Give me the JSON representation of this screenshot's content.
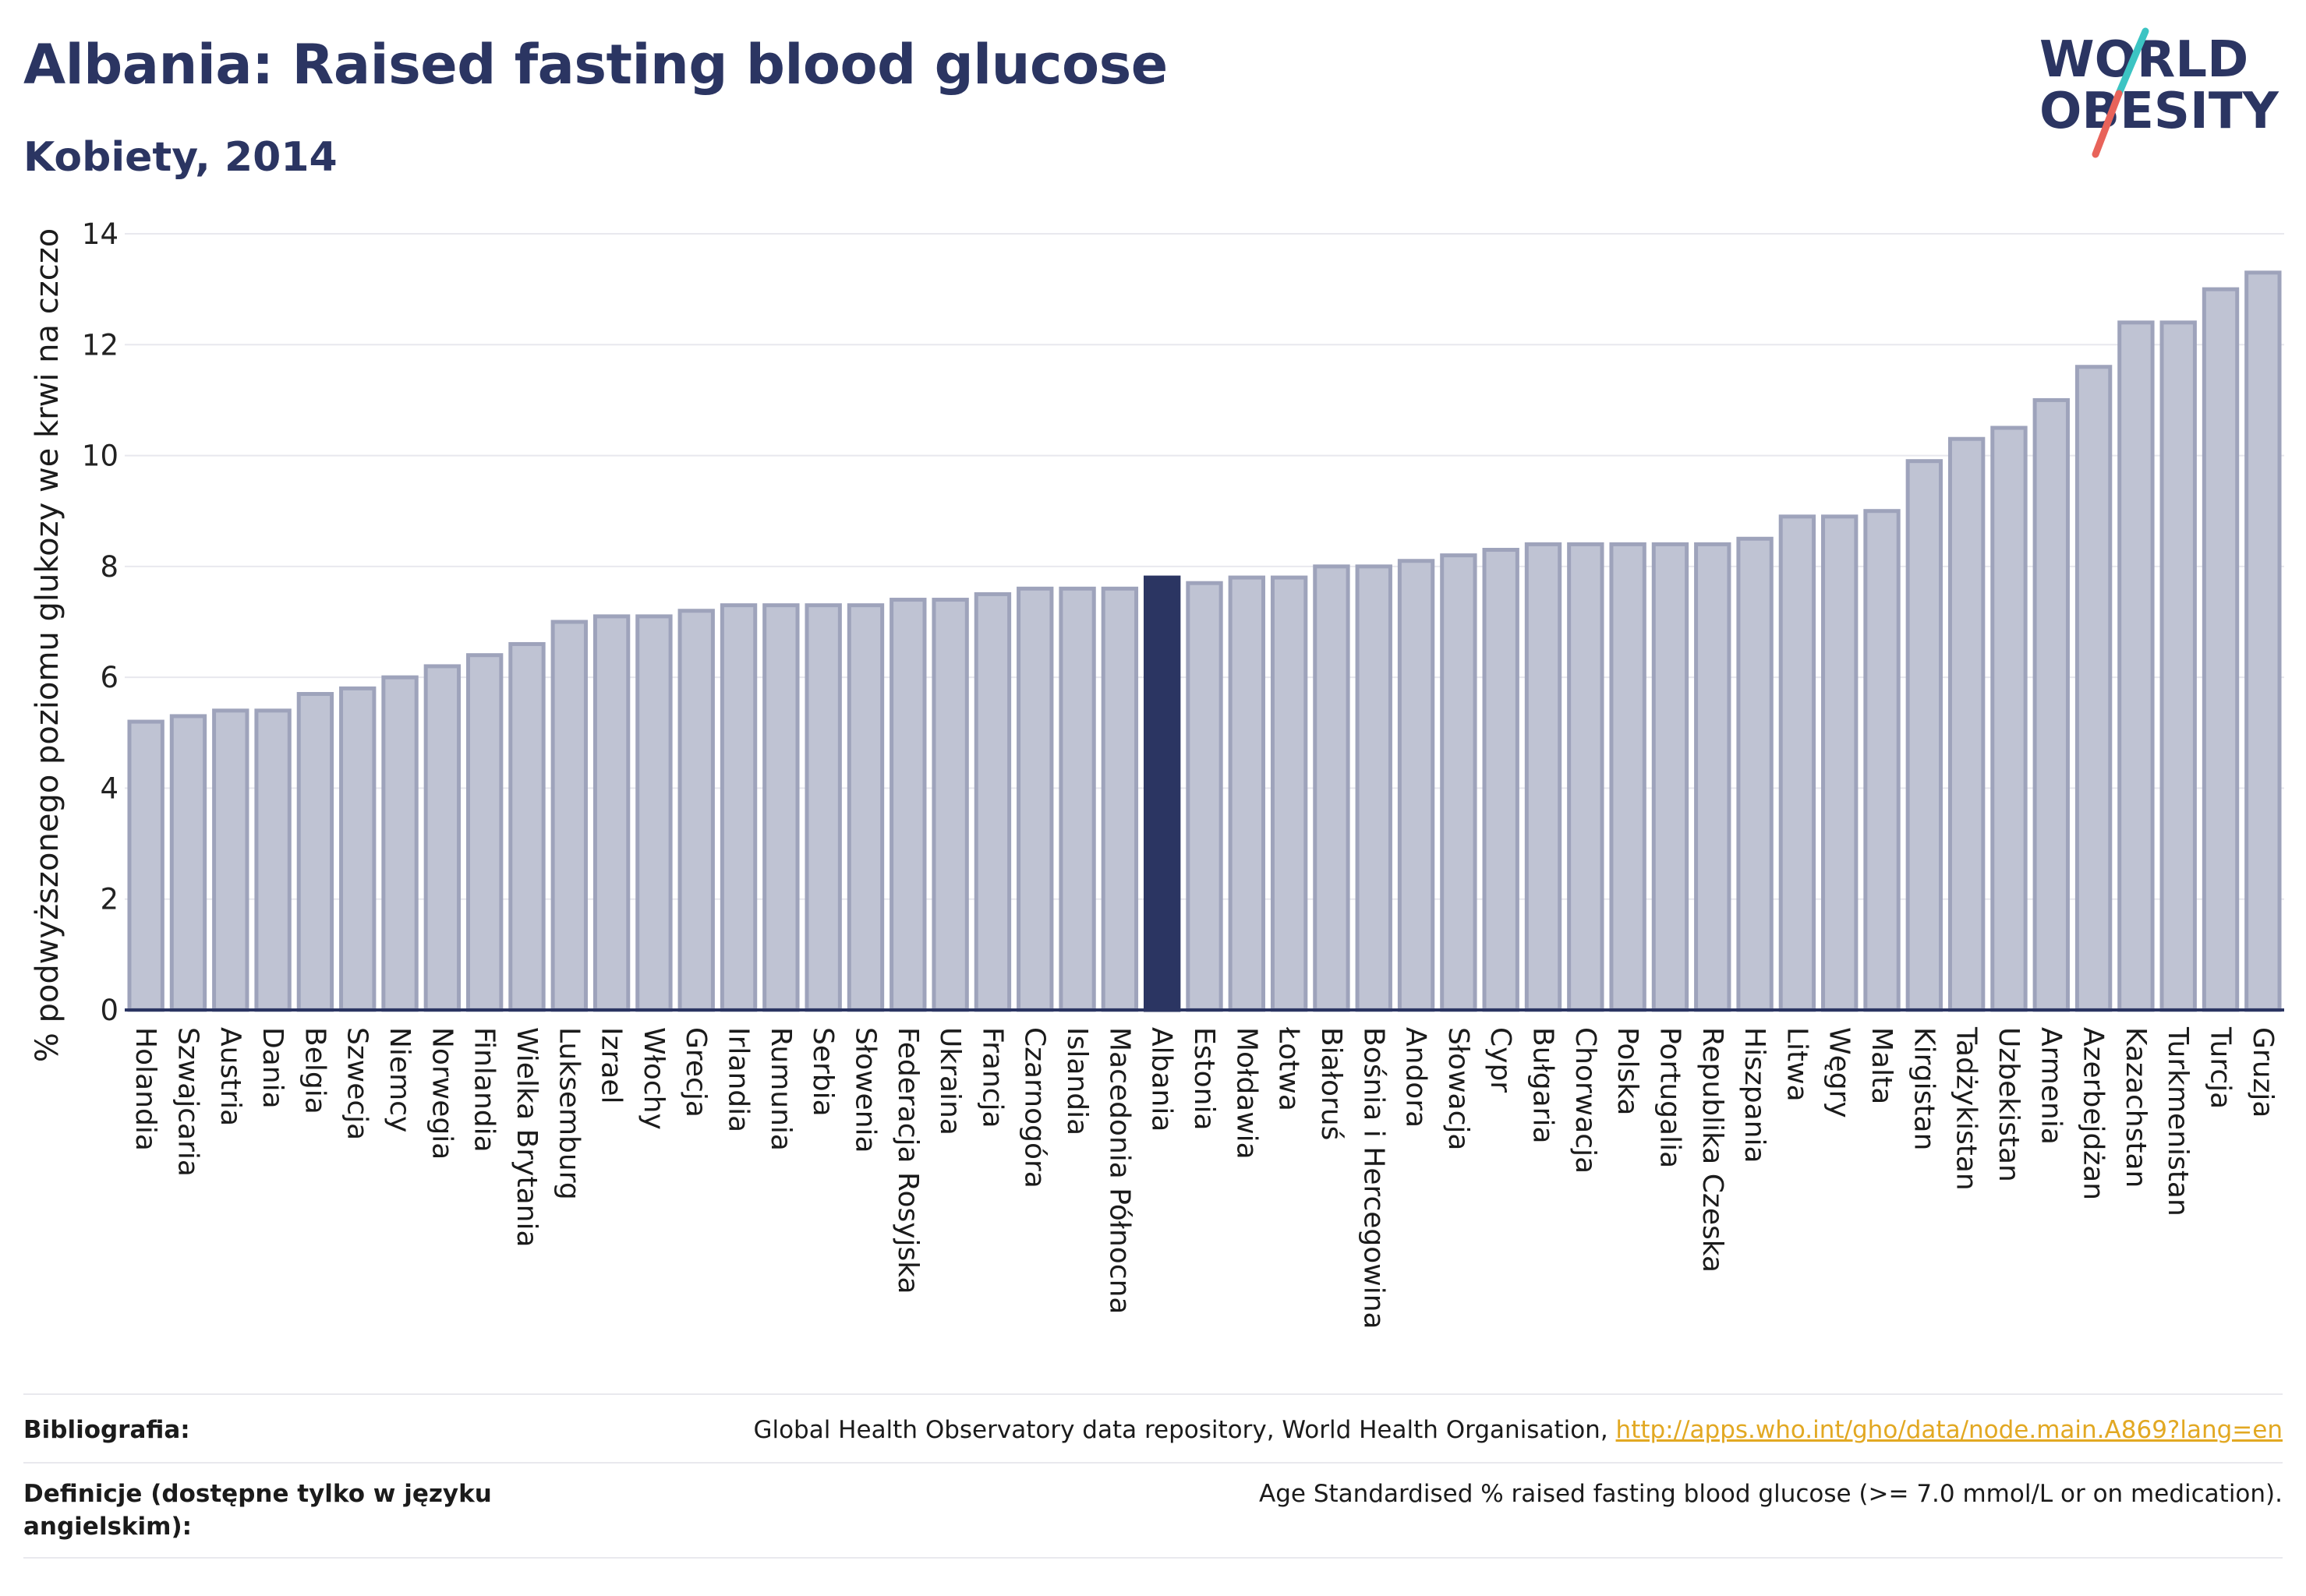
{
  "title": "Albania: Raised fasting blood glucose",
  "subtitle": "Kobiety, 2014",
  "logo": {
    "line1": "WORLD",
    "line2": "OBESITY"
  },
  "colors": {
    "bar": "#bfc3d3",
    "bar_edge": "#9ea3bb",
    "highlight": "#2b3562",
    "text": "#2b3562",
    "link": "#e2a822",
    "grid": "#e8e8ee",
    "logo_slash_a": "#3cc4c3",
    "logo_slash_b": "#e8635a"
  },
  "chart_data": {
    "type": "bar",
    "ylabel": "% podwyższonego poziomu glukozy we krwi na czczo",
    "ylim": [
      0,
      14
    ],
    "yticks": [
      "0",
      "2",
      "4",
      "6",
      "8",
      "10",
      "12",
      "14"
    ],
    "grid": true,
    "highlight": "Albania",
    "categories": [
      "Holandia",
      "Szwajcaria",
      "Austria",
      "Dania",
      "Belgia",
      "Szwecja",
      "Niemcy",
      "Norwegia",
      "Finlandia",
      "Wielka Brytania",
      "Luksemburg",
      "Izrael",
      "Włochy",
      "Grecja",
      "Irlandia",
      "Rumunia",
      "Serbia",
      "Słowenia",
      "Federacja Rosyjska",
      "Ukraina",
      "Francja",
      "Czarnogóra",
      "Islandia",
      "Macedonia Północna",
      "Albania",
      "Estonia",
      "Mołdawia",
      "Łotwa",
      "Białoruś",
      "Bośnia i Hercegowina",
      "Andora",
      "Słowacja",
      "Cypr",
      "Bułgaria",
      "Chorwacja",
      "Polska",
      "Portugalia",
      "Republika Czeska",
      "Hiszpania",
      "Litwa",
      "Węgry",
      "Malta",
      "Kirgistan",
      "Tadżykistan",
      "Uzbekistan",
      "Armenia",
      "Azerbejdżan",
      "Kazachstan",
      "Turkmenistan",
      "Turcja",
      "Gruzja"
    ],
    "values": [
      5.2,
      5.3,
      5.4,
      5.4,
      5.7,
      5.8,
      6.0,
      6.2,
      6.4,
      6.6,
      7.0,
      7.1,
      7.1,
      7.2,
      7.3,
      7.3,
      7.3,
      7.3,
      7.4,
      7.4,
      7.5,
      7.6,
      7.6,
      7.6,
      7.8,
      7.7,
      7.8,
      7.8,
      8.0,
      8.0,
      8.1,
      8.2,
      8.3,
      8.4,
      8.4,
      8.4,
      8.4,
      8.4,
      8.5,
      8.9,
      8.9,
      9.0,
      9.9,
      10.3,
      10.5,
      11.0,
      11.6,
      12.4,
      12.4,
      13.0,
      13.3
    ]
  },
  "footer": {
    "bibliography_label": "Bibliografia:",
    "bibliography_text": "Global Health Observatory data repository, World Health Organisation, ",
    "bibliography_link": "http://apps.who.int/gho/data/node.main.A869?lang=en",
    "definitions_label": "Definicje (dostępne tylko w języku angielskim):",
    "definitions_text": "Age Standardised % raised fasting blood glucose (>= 7.0 mmol/L or on medication)."
  }
}
